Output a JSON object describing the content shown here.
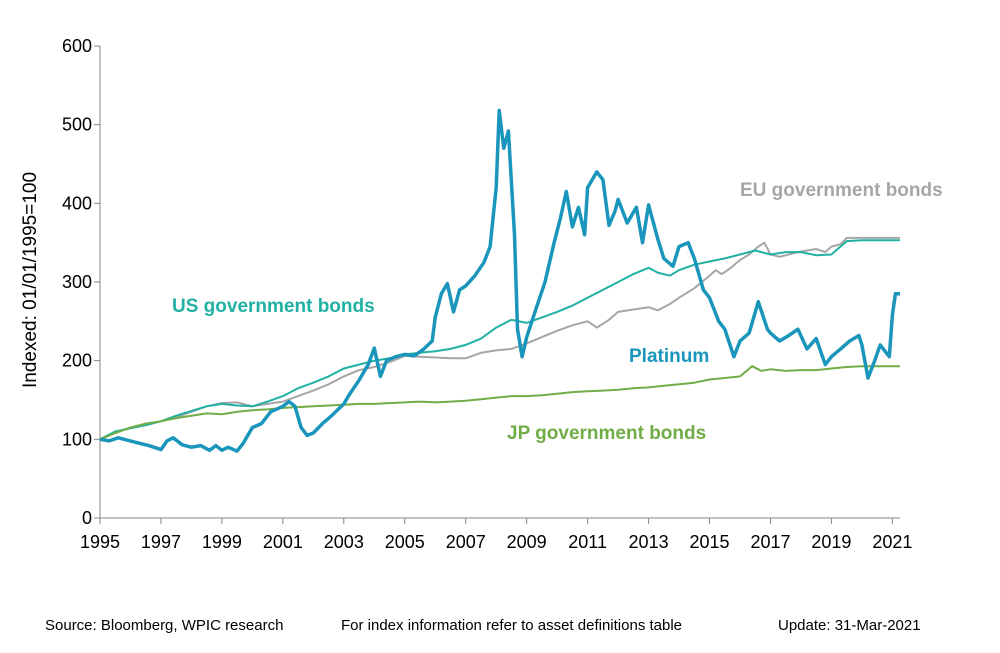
{
  "chart_data": {
    "type": "line",
    "ylabel": "Indexed: 01/01/1995=100",
    "ylim": [
      0,
      600
    ],
    "yticks": [
      0,
      100,
      200,
      300,
      400,
      500,
      600
    ],
    "xlim": [
      1995,
      2021.25
    ],
    "xticks": [
      1995,
      1997,
      1999,
      2001,
      2003,
      2005,
      2007,
      2009,
      2011,
      2013,
      2015,
      2017,
      2019,
      2021
    ],
    "grid": false,
    "series": [
      {
        "name": "EU government bonds",
        "color": "#A6A6A6",
        "points": [
          [
            1995,
            100
          ],
          [
            1995.5,
            108
          ],
          [
            1996,
            115
          ],
          [
            1996.5,
            118
          ],
          [
            1997,
            123
          ],
          [
            1997.5,
            128
          ],
          [
            1998,
            135
          ],
          [
            1998.5,
            142
          ],
          [
            1999,
            146
          ],
          [
            1999.5,
            147
          ],
          [
            2000,
            142
          ],
          [
            2000.5,
            145
          ],
          [
            2001,
            148
          ],
          [
            2001.5,
            155
          ],
          [
            2002,
            162
          ],
          [
            2002.5,
            170
          ],
          [
            2003,
            180
          ],
          [
            2003.5,
            188
          ],
          [
            2004,
            192
          ],
          [
            2004.5,
            198
          ],
          [
            2005,
            206
          ],
          [
            2005.5,
            205
          ],
          [
            2006,
            204
          ],
          [
            2006.5,
            203
          ],
          [
            2007,
            203
          ],
          [
            2007.5,
            210
          ],
          [
            2008,
            213
          ],
          [
            2008.5,
            215
          ],
          [
            2009,
            222
          ],
          [
            2009.5,
            230
          ],
          [
            2010,
            238
          ],
          [
            2010.5,
            245
          ],
          [
            2011,
            250
          ],
          [
            2011.3,
            242
          ],
          [
            2011.7,
            252
          ],
          [
            2012,
            262
          ],
          [
            2012.5,
            265
          ],
          [
            2013,
            268
          ],
          [
            2013.3,
            264
          ],
          [
            2013.7,
            272
          ],
          [
            2014,
            280
          ],
          [
            2014.5,
            292
          ],
          [
            2015,
            308
          ],
          [
            2015.2,
            315
          ],
          [
            2015.4,
            310
          ],
          [
            2015.7,
            318
          ],
          [
            2016,
            328
          ],
          [
            2016.3,
            335
          ],
          [
            2016.6,
            345
          ],
          [
            2016.8,
            350
          ],
          [
            2017,
            335
          ],
          [
            2017.3,
            332
          ],
          [
            2017.6,
            335
          ],
          [
            2017.9,
            338
          ],
          [
            2018.2,
            340
          ],
          [
            2018.5,
            342
          ],
          [
            2018.8,
            338
          ],
          [
            2019,
            345
          ],
          [
            2019.3,
            348
          ],
          [
            2019.5,
            356
          ],
          [
            2020,
            356
          ],
          [
            2020.5,
            356
          ],
          [
            2021,
            356
          ],
          [
            2021.25,
            356
          ]
        ]
      },
      {
        "name": "US government bonds",
        "color": "#21B1A3",
        "points": [
          [
            1995,
            100
          ],
          [
            1995.5,
            110
          ],
          [
            1996,
            114
          ],
          [
            1996.5,
            118
          ],
          [
            1997,
            123
          ],
          [
            1997.5,
            130
          ],
          [
            1998,
            136
          ],
          [
            1998.5,
            142
          ],
          [
            1999,
            145
          ],
          [
            1999.5,
            143
          ],
          [
            2000,
            142
          ],
          [
            2000.5,
            148
          ],
          [
            2001,
            155
          ],
          [
            2001.5,
            165
          ],
          [
            2002,
            172
          ],
          [
            2002.5,
            180
          ],
          [
            2003,
            190
          ],
          [
            2003.5,
            195
          ],
          [
            2004,
            200
          ],
          [
            2004.5,
            203
          ],
          [
            2005,
            208
          ],
          [
            2005.5,
            210
          ],
          [
            2006,
            212
          ],
          [
            2006.5,
            215
          ],
          [
            2007,
            220
          ],
          [
            2007.5,
            228
          ],
          [
            2008,
            242
          ],
          [
            2008.5,
            252
          ],
          [
            2009,
            248
          ],
          [
            2009.5,
            255
          ],
          [
            2010,
            262
          ],
          [
            2010.5,
            270
          ],
          [
            2011,
            280
          ],
          [
            2011.5,
            290
          ],
          [
            2012,
            300
          ],
          [
            2012.5,
            310
          ],
          [
            2013,
            318
          ],
          [
            2013.3,
            312
          ],
          [
            2013.7,
            308
          ],
          [
            2014,
            315
          ],
          [
            2014.5,
            322
          ],
          [
            2015,
            326
          ],
          [
            2015.5,
            330
          ],
          [
            2016,
            335
          ],
          [
            2016.5,
            340
          ],
          [
            2017,
            335
          ],
          [
            2017.5,
            338
          ],
          [
            2018,
            338
          ],
          [
            2018.5,
            334
          ],
          [
            2019,
            335
          ],
          [
            2019.5,
            352
          ],
          [
            2020,
            353
          ],
          [
            2020.5,
            353
          ],
          [
            2021,
            353
          ],
          [
            2021.25,
            353
          ]
        ]
      },
      {
        "name": "JP government bonds",
        "color": "#70AD47",
        "points": [
          [
            1995,
            100
          ],
          [
            1995.5,
            108
          ],
          [
            1996,
            115
          ],
          [
            1996.5,
            120
          ],
          [
            1997,
            123
          ],
          [
            1997.5,
            127
          ],
          [
            1998,
            130
          ],
          [
            1998.5,
            133
          ],
          [
            1999,
            132
          ],
          [
            1999.5,
            135
          ],
          [
            2000,
            137
          ],
          [
            2000.5,
            138
          ],
          [
            2001,
            140
          ],
          [
            2001.5,
            141
          ],
          [
            2002,
            142
          ],
          [
            2002.5,
            143
          ],
          [
            2003,
            144
          ],
          [
            2003.5,
            145
          ],
          [
            2004,
            145
          ],
          [
            2004.5,
            146
          ],
          [
            2005,
            147
          ],
          [
            2005.5,
            148
          ],
          [
            2006,
            147
          ],
          [
            2006.5,
            148
          ],
          [
            2007,
            149
          ],
          [
            2007.5,
            151
          ],
          [
            2008,
            153
          ],
          [
            2008.5,
            155
          ],
          [
            2009,
            155
          ],
          [
            2009.5,
            156
          ],
          [
            2010,
            158
          ],
          [
            2010.5,
            160
          ],
          [
            2011,
            161
          ],
          [
            2011.5,
            162
          ],
          [
            2012,
            163
          ],
          [
            2012.5,
            165
          ],
          [
            2013,
            166
          ],
          [
            2013.5,
            168
          ],
          [
            2014,
            170
          ],
          [
            2014.5,
            172
          ],
          [
            2015,
            176
          ],
          [
            2015.5,
            178
          ],
          [
            2016,
            180
          ],
          [
            2016.4,
            193
          ],
          [
            2016.7,
            187
          ],
          [
            2017,
            189
          ],
          [
            2017.5,
            187
          ],
          [
            2018,
            188
          ],
          [
            2018.5,
            188
          ],
          [
            2019,
            190
          ],
          [
            2019.5,
            192
          ],
          [
            2020,
            193
          ],
          [
            2020.5,
            193
          ],
          [
            2021,
            193
          ],
          [
            2021.25,
            193
          ]
        ]
      },
      {
        "name": "Platinum",
        "color": "#1A95BC",
        "points": [
          [
            1995,
            100
          ],
          [
            1995.3,
            98
          ],
          [
            1995.6,
            102
          ],
          [
            1996,
            98
          ],
          [
            1996.3,
            95
          ],
          [
            1996.6,
            92
          ],
          [
            1997,
            87
          ],
          [
            1997.2,
            98
          ],
          [
            1997.4,
            102
          ],
          [
            1997.7,
            93
          ],
          [
            1998,
            90
          ],
          [
            1998.3,
            92
          ],
          [
            1998.6,
            86
          ],
          [
            1998.8,
            92
          ],
          [
            1999,
            86
          ],
          [
            1999.2,
            90
          ],
          [
            1999.5,
            85
          ],
          [
            1999.7,
            95
          ],
          [
            2000,
            115
          ],
          [
            2000.3,
            120
          ],
          [
            2000.6,
            135
          ],
          [
            2001,
            142
          ],
          [
            2001.2,
            148
          ],
          [
            2001.4,
            142
          ],
          [
            2001.6,
            115
          ],
          [
            2001.8,
            105
          ],
          [
            2002,
            108
          ],
          [
            2002.3,
            120
          ],
          [
            2002.6,
            130
          ],
          [
            2003,
            145
          ],
          [
            2003.2,
            158
          ],
          [
            2003.5,
            175
          ],
          [
            2003.8,
            195
          ],
          [
            2004,
            216
          ],
          [
            2004.2,
            180
          ],
          [
            2004.4,
            200
          ],
          [
            2004.7,
            205
          ],
          [
            2005,
            208
          ],
          [
            2005.3,
            206
          ],
          [
            2005.6,
            214
          ],
          [
            2005.9,
            225
          ],
          [
            2006,
            255
          ],
          [
            2006.2,
            285
          ],
          [
            2006.4,
            298
          ],
          [
            2006.6,
            262
          ],
          [
            2006.8,
            290
          ],
          [
            2007,
            295
          ],
          [
            2007.3,
            308
          ],
          [
            2007.6,
            325
          ],
          [
            2007.8,
            345
          ],
          [
            2008,
            420
          ],
          [
            2008.1,
            518
          ],
          [
            2008.25,
            470
          ],
          [
            2008.4,
            492
          ],
          [
            2008.6,
            360
          ],
          [
            2008.7,
            240
          ],
          [
            2008.85,
            205
          ],
          [
            2009,
            230
          ],
          [
            2009.3,
            265
          ],
          [
            2009.6,
            300
          ],
          [
            2009.9,
            350
          ],
          [
            2010.1,
            380
          ],
          [
            2010.3,
            415
          ],
          [
            2010.5,
            370
          ],
          [
            2010.7,
            395
          ],
          [
            2010.9,
            360
          ],
          [
            2011,
            420
          ],
          [
            2011.3,
            440
          ],
          [
            2011.5,
            430
          ],
          [
            2011.7,
            372
          ],
          [
            2011.9,
            390
          ],
          [
            2012,
            405
          ],
          [
            2012.3,
            375
          ],
          [
            2012.6,
            395
          ],
          [
            2012.8,
            350
          ],
          [
            2013,
            398
          ],
          [
            2013.3,
            355
          ],
          [
            2013.5,
            330
          ],
          [
            2013.8,
            320
          ],
          [
            2014,
            345
          ],
          [
            2014.3,
            350
          ],
          [
            2014.5,
            330
          ],
          [
            2014.8,
            290
          ],
          [
            2015,
            280
          ],
          [
            2015.3,
            250
          ],
          [
            2015.5,
            240
          ],
          [
            2015.8,
            205
          ],
          [
            2016,
            225
          ],
          [
            2016.3,
            235
          ],
          [
            2016.6,
            275
          ],
          [
            2016.9,
            240
          ],
          [
            2017,
            235
          ],
          [
            2017.3,
            225
          ],
          [
            2017.6,
            232
          ],
          [
            2017.9,
            240
          ],
          [
            2018.2,
            215
          ],
          [
            2018.5,
            228
          ],
          [
            2018.8,
            195
          ],
          [
            2019,
            205
          ],
          [
            2019.3,
            215
          ],
          [
            2019.6,
            225
          ],
          [
            2019.9,
            232
          ],
          [
            2020,
            220
          ],
          [
            2020.2,
            178
          ],
          [
            2020.4,
            198
          ],
          [
            2020.6,
            220
          ],
          [
            2020.9,
            205
          ],
          [
            2021,
            258
          ],
          [
            2021.1,
            285
          ],
          [
            2021.25,
            285
          ]
        ]
      }
    ],
    "labels": [
      {
        "text": "EU government bonds",
        "color": "#A6A6A6"
      },
      {
        "text": "US government bonds",
        "color": "#21B1A3"
      },
      {
        "text": "Platinum",
        "color": "#1A95BC"
      },
      {
        "text": "JP government bonds",
        "color": "#70AD47"
      }
    ]
  },
  "footer": {
    "source": "Source: Bloomberg, WPIC research",
    "note": "For index information refer to asset definitions table",
    "update": "Update: 31-Mar-2021"
  }
}
